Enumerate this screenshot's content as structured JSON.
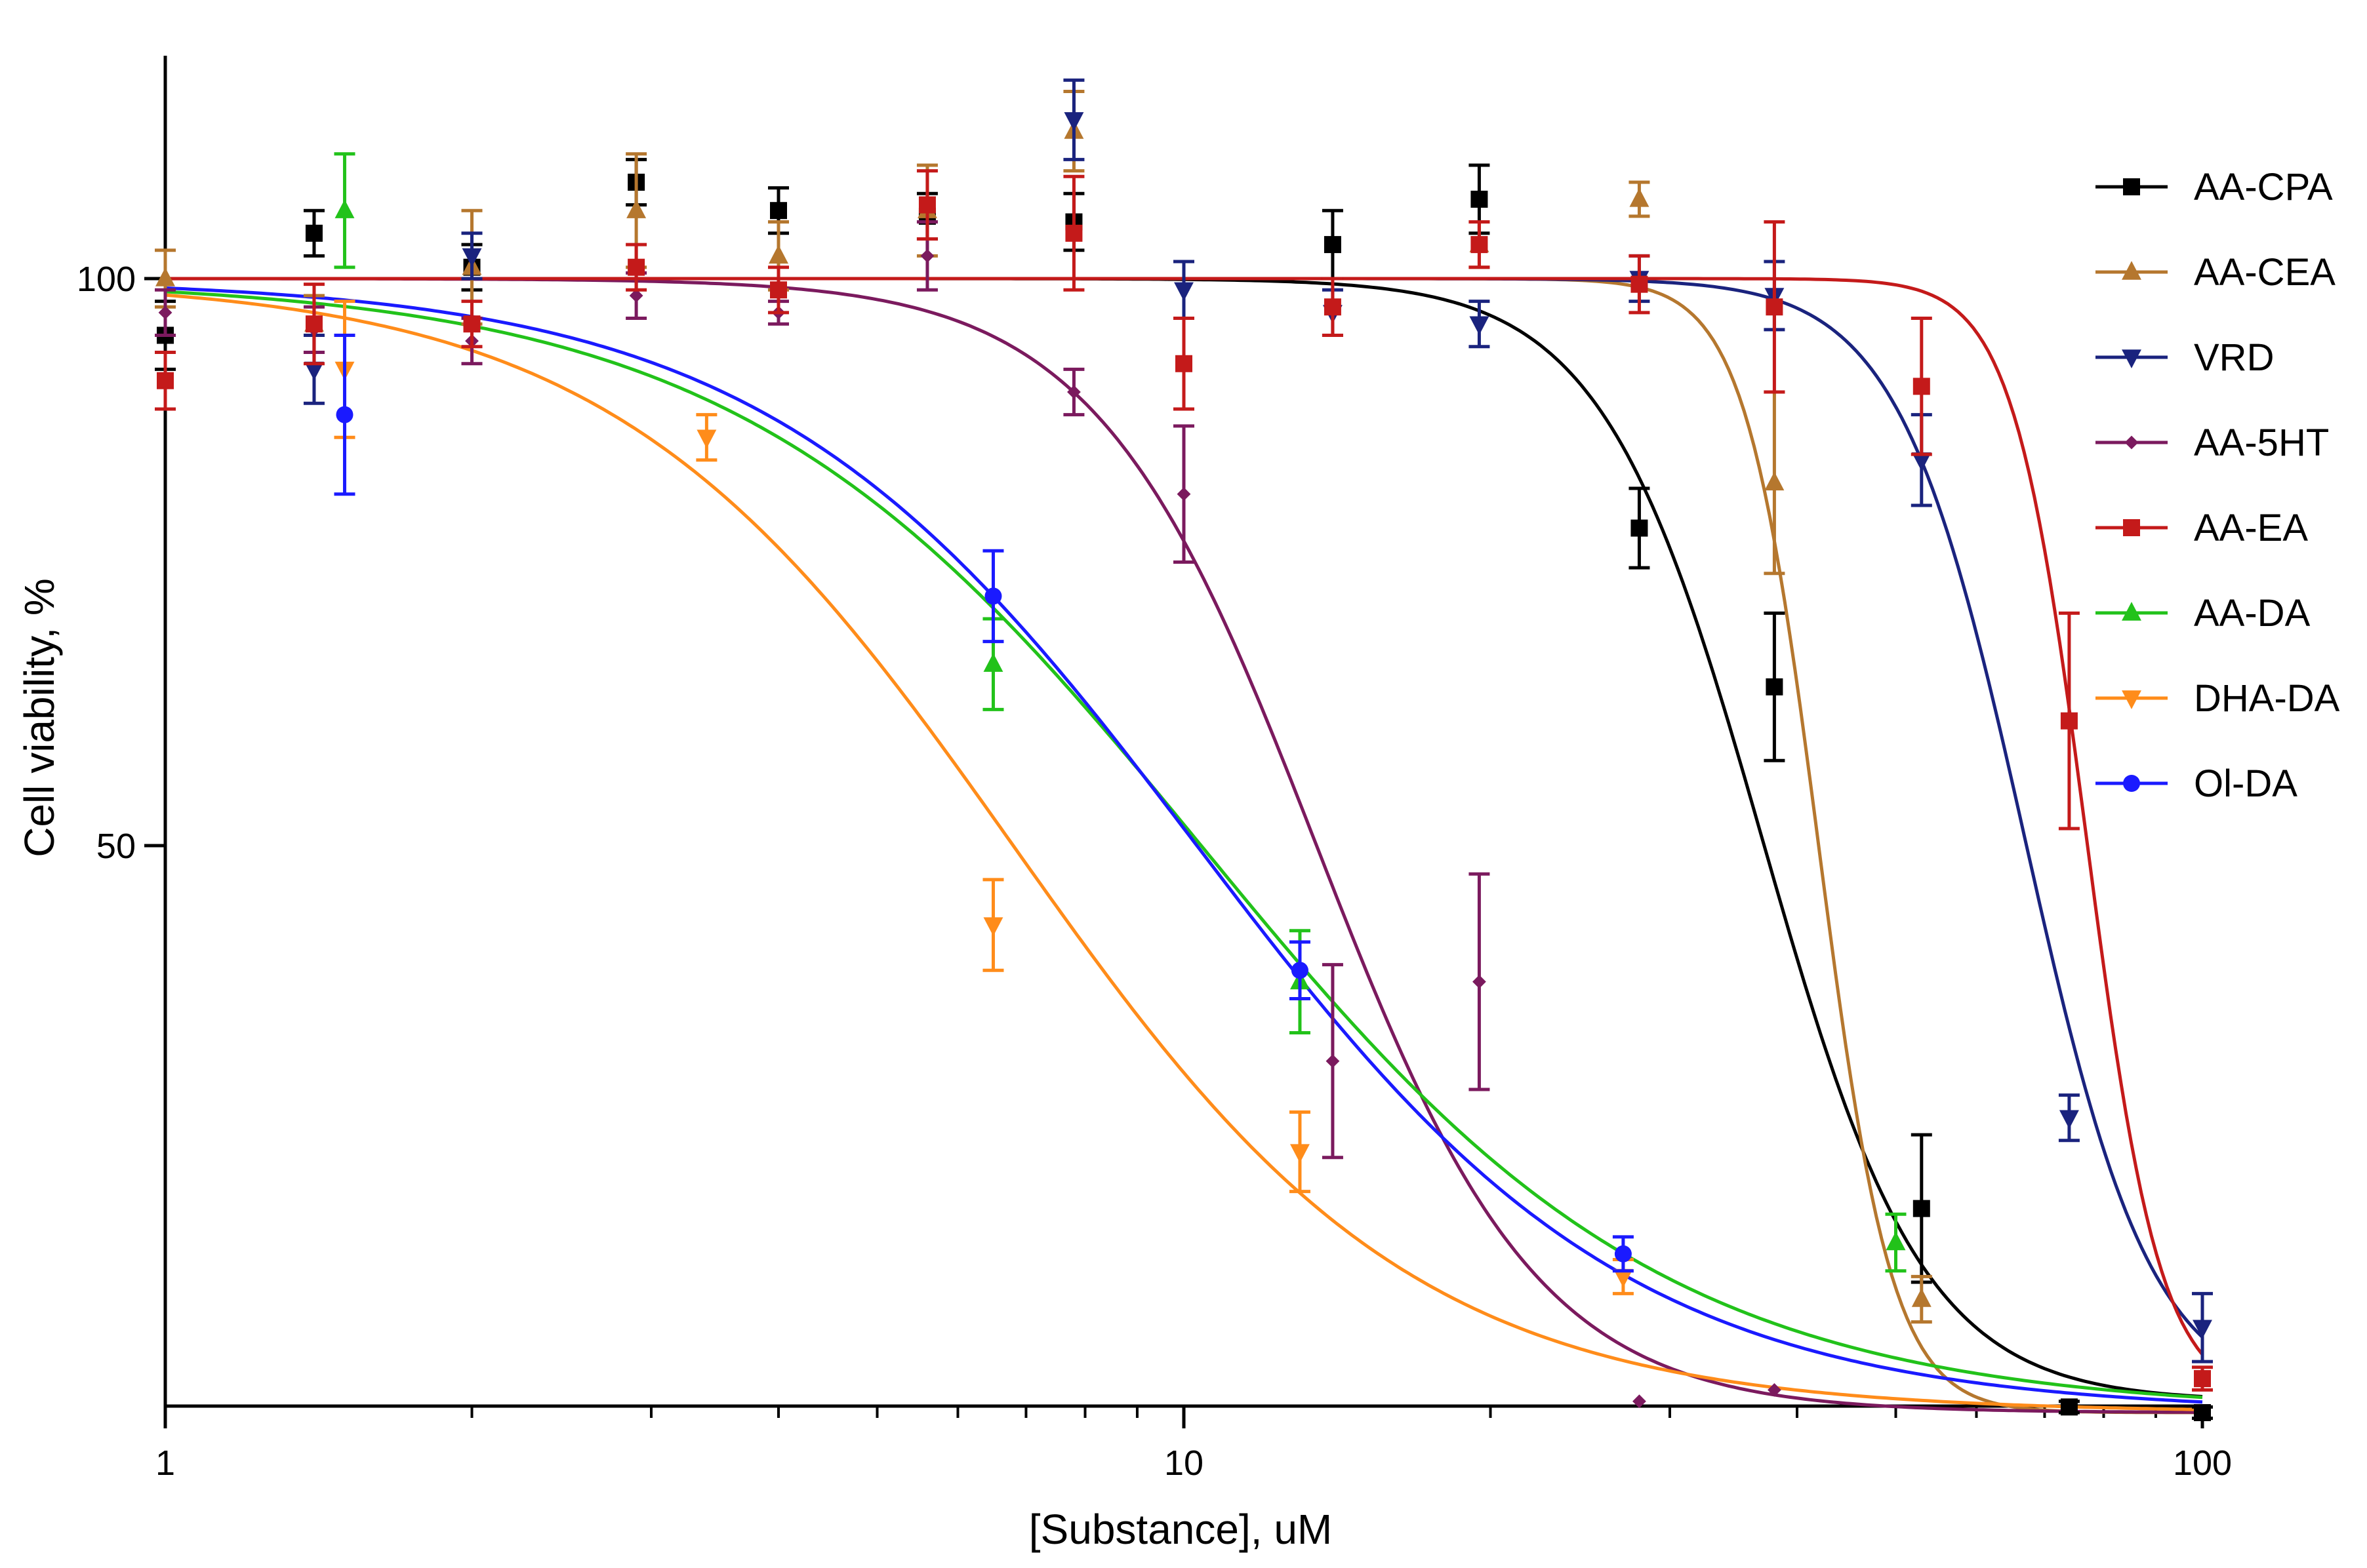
{
  "chart_data": {
    "type": "scatter",
    "title": "",
    "xlabel": "[Substance], uM",
    "ylabel": "Cell viability, %",
    "xscale": "log",
    "xlim": [
      1,
      100
    ],
    "ylim": [
      1,
      120
    ],
    "x_ticks": [
      1,
      10,
      100
    ],
    "x_tick_labels": [
      "1",
      "10",
      "100"
    ],
    "y_ticks": [
      50,
      100
    ],
    "y_tick_labels": [
      "50",
      "100"
    ],
    "legend_position": "right",
    "series": [
      {
        "name": "AA-CPA",
        "color": "#000000",
        "marker": "square",
        "fit": {
          "top": 100,
          "bottom": 1,
          "ic50": 37,
          "hill": 5.5
        },
        "points": [
          {
            "x": 1.0,
            "y": 95,
            "err": 3
          },
          {
            "x": 1.4,
            "y": 104,
            "err": 2
          },
          {
            "x": 2.0,
            "y": 101,
            "err": 2
          },
          {
            "x": 2.9,
            "y": 108.5,
            "err": 2
          },
          {
            "x": 4.0,
            "y": 106,
            "err": 2
          },
          {
            "x": 5.6,
            "y": 105.5,
            "err": 2
          },
          {
            "x": 7.8,
            "y": 105,
            "err": 2.5
          },
          {
            "x": 14,
            "y": 103,
            "err": 3
          },
          {
            "x": 19.5,
            "y": 107,
            "err": 3
          },
          {
            "x": 28,
            "y": 78,
            "err": 3.5
          },
          {
            "x": 38,
            "y": 64,
            "err": 6.5
          },
          {
            "x": 53,
            "y": 18,
            "err": 6.5
          },
          {
            "x": 74,
            "y": 0.5,
            "err": 0.5
          },
          {
            "x": 100,
            "y": 0,
            "err": 0.5
          }
        ]
      },
      {
        "name": "AA-CEA",
        "color": "#b5772e",
        "marker": "triangle-up",
        "fit": {
          "top": 100,
          "bottom": 0,
          "ic50": 42,
          "hill": 12
        },
        "points": [
          {
            "x": 1.0,
            "y": 100,
            "err": 2.5
          },
          {
            "x": 1.4,
            "y": 96,
            "err": 2.5
          },
          {
            "x": 2.0,
            "y": 101,
            "err": 5
          },
          {
            "x": 2.9,
            "y": 106,
            "err": 5
          },
          {
            "x": 4.0,
            "y": 102,
            "err": 3
          },
          {
            "x": 5.6,
            "y": 106,
            "err": 4
          },
          {
            "x": 7.8,
            "y": 113,
            "err": 3.5
          },
          {
            "x": 19.5,
            "y": 103,
            "err": 2
          },
          {
            "x": 28,
            "y": 107,
            "err": 1.5
          },
          {
            "x": 38,
            "y": 82,
            "err": 8
          },
          {
            "x": 53,
            "y": 10,
            "err": 2
          }
        ]
      },
      {
        "name": "VRD",
        "color": "#1a237e",
        "marker": "triangle-down",
        "fit": {
          "top": 100,
          "bottom": 1,
          "ic50": 67,
          "hill": 7
        },
        "points": [
          {
            "x": 1.4,
            "y": 92,
            "err": 3
          },
          {
            "x": 2.0,
            "y": 102,
            "err": 2
          },
          {
            "x": 7.8,
            "y": 114,
            "err": 3.5
          },
          {
            "x": 10,
            "y": 99,
            "err": 2.5
          },
          {
            "x": 14,
            "y": 97,
            "err": 2
          },
          {
            "x": 19.5,
            "y": 96,
            "err": 2
          },
          {
            "x": 28,
            "y": 100,
            "err": 2
          },
          {
            "x": 38,
            "y": 98.5,
            "err": 3
          },
          {
            "x": 53,
            "y": 84,
            "err": 4
          },
          {
            "x": 74,
            "y": 26,
            "err": 2
          },
          {
            "x": 100,
            "y": 7.5,
            "err": 3
          }
        ]
      },
      {
        "name": "AA-5HT",
        "color": "#7b1a5e",
        "marker": "diamond",
        "fit": {
          "top": 100,
          "bottom": 0,
          "ic50": 13.5,
          "hill": 4
        },
        "points": [
          {
            "x": 1.0,
            "y": 97,
            "err": 2
          },
          {
            "x": 1.4,
            "y": 95.5,
            "err": 2
          },
          {
            "x": 2.0,
            "y": 94.5,
            "err": 2
          },
          {
            "x": 2.9,
            "y": 98.5,
            "err": 2
          },
          {
            "x": 4.0,
            "y": 97,
            "err": 1
          },
          {
            "x": 5.6,
            "y": 102,
            "err": 3
          },
          {
            "x": 7.8,
            "y": 90,
            "err": 2
          },
          {
            "x": 10,
            "y": 81,
            "err": 6
          },
          {
            "x": 14,
            "y": 31,
            "err": 8.5
          },
          {
            "x": 19.5,
            "y": 38,
            "err": 9.5
          },
          {
            "x": 28,
            "y": 1,
            "err": 0
          },
          {
            "x": 38,
            "y": 2,
            "err": 0
          }
        ]
      },
      {
        "name": "AA-EA",
        "color": "#c41a1a",
        "marker": "square",
        "fit": {
          "top": 100,
          "bottom": 1,
          "ic50": 77,
          "hill": 12
        },
        "points": [
          {
            "x": 1.0,
            "y": 91,
            "err": 2.5
          },
          {
            "x": 1.4,
            "y": 96,
            "err": 3.5
          },
          {
            "x": 2.0,
            "y": 96,
            "err": 2
          },
          {
            "x": 2.9,
            "y": 101,
            "err": 2
          },
          {
            "x": 4.0,
            "y": 99,
            "err": 2
          },
          {
            "x": 5.6,
            "y": 106.5,
            "err": 3
          },
          {
            "x": 7.8,
            "y": 104,
            "err": 5
          },
          {
            "x": 10,
            "y": 92.5,
            "err": 4
          },
          {
            "x": 14,
            "y": 97.5,
            "err": 2.5
          },
          {
            "x": 19.5,
            "y": 103,
            "err": 2
          },
          {
            "x": 28,
            "y": 99.5,
            "err": 2.5
          },
          {
            "x": 38,
            "y": 97.5,
            "err": 7.5
          },
          {
            "x": 53,
            "y": 90.5,
            "err": 6
          },
          {
            "x": 74,
            "y": 61,
            "err": 9.5
          },
          {
            "x": 100,
            "y": 3,
            "err": 1
          }
        ]
      },
      {
        "name": "AA-DA",
        "color": "#22c21a",
        "marker": "triangle-up",
        "fit": {
          "top": 100,
          "bottom": 0,
          "ic50": 10.4,
          "hill": 1.9
        },
        "points": [
          {
            "x": 1.5,
            "y": 106,
            "err": 5
          },
          {
            "x": 6.5,
            "y": 66,
            "err": 4
          },
          {
            "x": 13,
            "y": 38,
            "err": 4.5
          },
          {
            "x": 50,
            "y": 15,
            "err": 2.5
          }
        ]
      },
      {
        "name": "DHA-DA",
        "color": "#ff8c1a",
        "marker": "triangle-down",
        "fit": {
          "top": 100,
          "bottom": 0,
          "ic50": 6.8,
          "hill": 2.2
        },
        "points": [
          {
            "x": 1.5,
            "y": 92,
            "err": 6
          },
          {
            "x": 3.4,
            "y": 86,
            "err": 2
          },
          {
            "x": 6.5,
            "y": 43,
            "err": 4
          },
          {
            "x": 13,
            "y": 23,
            "err": 3.5
          },
          {
            "x": 27,
            "y": 12,
            "err": 1.5
          }
        ]
      },
      {
        "name": "Ol-DA",
        "color": "#1a1aff",
        "marker": "circle",
        "fit": {
          "top": 100,
          "bottom": 0,
          "ic50": 10.3,
          "hill": 2.05
        },
        "points": [
          {
            "x": 1.5,
            "y": 88,
            "err": 7
          },
          {
            "x": 6.5,
            "y": 72,
            "err": 4
          },
          {
            "x": 13,
            "y": 39,
            "err": 2.5
          },
          {
            "x": 27,
            "y": 14,
            "err": 1.5
          }
        ]
      }
    ]
  }
}
